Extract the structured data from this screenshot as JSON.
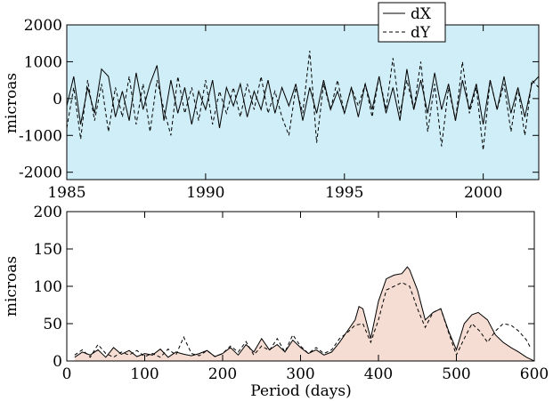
{
  "chart_data": [
    {
      "type": "line",
      "ylabel": "microas",
      "xlim": [
        1985,
        2002
      ],
      "ylim": [
        -2200,
        2000
      ],
      "xticks": [
        1985,
        1990,
        1995,
        2000
      ],
      "yticks": [
        -2000,
        -1000,
        0,
        1000,
        2000
      ],
      "xtick_labels": [
        "1985",
        "1990",
        "1995",
        "2000"
      ],
      "ytick_labels": [
        "-2000",
        "-1000",
        "0",
        "1000",
        "2000"
      ],
      "background": "#cfeef7",
      "grid": false,
      "legend": {
        "placement": "top-right",
        "entries": [
          "dX",
          "dY"
        ]
      },
      "series": [
        {
          "name": "dX",
          "style": "solid",
          "x": [
            1985.0,
            1985.25,
            1985.5,
            1985.75,
            1986.0,
            1986.25,
            1986.5,
            1986.75,
            1987.0,
            1987.25,
            1987.5,
            1987.75,
            1988.0,
            1988.25,
            1988.5,
            1988.75,
            1989.0,
            1989.25,
            1989.5,
            1989.75,
            1990.0,
            1990.25,
            1990.5,
            1990.75,
            1991.0,
            1991.25,
            1991.5,
            1991.75,
            1992.0,
            1992.25,
            1992.5,
            1992.75,
            1993.0,
            1993.25,
            1993.5,
            1993.75,
            1994.0,
            1994.25,
            1994.5,
            1994.75,
            1995.0,
            1995.25,
            1995.5,
            1995.75,
            1996.0,
            1996.25,
            1996.5,
            1996.75,
            1997.0,
            1997.25,
            1997.5,
            1997.75,
            1998.0,
            1998.25,
            1998.5,
            1998.75,
            1999.0,
            1999.25,
            1999.5,
            1999.75,
            2000.0,
            2000.25,
            2000.5,
            2000.75,
            2001.0,
            2001.25,
            2001.5,
            2001.75,
            2002.0
          ],
          "values": [
            -200,
            600,
            -700,
            300,
            -400,
            800,
            600,
            -500,
            200,
            -600,
            700,
            -300,
            400,
            900,
            -600,
            500,
            -400,
            300,
            -700,
            200,
            -300,
            500,
            -800,
            300,
            -200,
            400,
            -500,
            200,
            -300,
            500,
            -400,
            300,
            -200,
            400,
            -600,
            300,
            -400,
            500,
            -300,
            200,
            -400,
            300,
            -500,
            400,
            -300,
            600,
            -400,
            300,
            -600,
            800,
            -300,
            500,
            -400,
            700,
            -300,
            400,
            -600,
            500,
            -300,
            400,
            -700,
            500,
            -300,
            600,
            -400,
            300,
            -500,
            400,
            600
          ]
        },
        {
          "name": "dY",
          "style": "dashed",
          "x": [
            1985.0,
            1985.25,
            1985.5,
            1985.75,
            1986.0,
            1986.25,
            1986.5,
            1986.75,
            1987.0,
            1987.25,
            1987.5,
            1987.75,
            1988.0,
            1988.25,
            1988.5,
            1988.75,
            1989.0,
            1989.25,
            1989.5,
            1989.75,
            1990.0,
            1990.25,
            1990.5,
            1990.75,
            1991.0,
            1991.25,
            1991.5,
            1991.75,
            1992.0,
            1992.25,
            1992.5,
            1992.75,
            1993.0,
            1993.25,
            1993.5,
            1993.75,
            1994.0,
            1994.25,
            1994.5,
            1994.75,
            1995.0,
            1995.25,
            1995.5,
            1995.75,
            1996.0,
            1996.25,
            1996.5,
            1996.75,
            1997.0,
            1997.25,
            1997.5,
            1997.75,
            1998.0,
            1998.25,
            1998.5,
            1998.75,
            1999.0,
            1999.25,
            1999.5,
            1999.75,
            2000.0,
            2000.25,
            2000.5,
            2000.75,
            2001.0,
            2001.25,
            2001.5,
            2001.75,
            2002.0
          ],
          "values": [
            -800,
            300,
            -1100,
            500,
            -600,
            400,
            -900,
            300,
            -500,
            600,
            -700,
            400,
            -900,
            500,
            -300,
            -1000,
            600,
            -400,
            300,
            -600,
            500,
            -700,
            200,
            -400,
            300,
            -500,
            400,
            -300,
            600,
            -400,
            200,
            -500,
            -1000,
            300,
            -400,
            1300,
            -1200,
            400,
            -300,
            500,
            -400,
            300,
            -200,
            400,
            -500,
            600,
            -300,
            1100,
            -400,
            500,
            -300,
            1000,
            -900,
            400,
            -1300,
            300,
            -600,
            1000,
            -400,
            300,
            -1400,
            500,
            -300,
            400,
            -900,
            300,
            -1000,
            500,
            300
          ]
        }
      ]
    },
    {
      "type": "area",
      "xlabel": "Period (days)",
      "ylabel": "microas",
      "xlim": [
        0,
        600
      ],
      "ylim": [
        0,
        200
      ],
      "xticks": [
        0,
        100,
        200,
        300,
        400,
        500,
        600
      ],
      "yticks": [
        0,
        50,
        100,
        150,
        200
      ],
      "xtick_labels": [
        "0",
        "100",
        "200",
        "300",
        "400",
        "500",
        "600"
      ],
      "ytick_labels": [
        "0",
        "50",
        "100",
        "150",
        "200"
      ],
      "fill_color": "#f5ddd3",
      "grid": false,
      "series": [
        {
          "name": "dX",
          "style": "solid",
          "filled": true,
          "x": [
            10,
            20,
            30,
            40,
            50,
            60,
            70,
            80,
            90,
            100,
            110,
            120,
            130,
            140,
            150,
            160,
            170,
            180,
            190,
            200,
            210,
            220,
            230,
            240,
            250,
            260,
            270,
            280,
            290,
            300,
            310,
            320,
            330,
            340,
            350,
            360,
            370,
            375,
            380,
            390,
            400,
            410,
            420,
            430,
            437,
            440,
            450,
            460,
            470,
            480,
            490,
            500,
            510,
            520,
            528,
            540,
            550,
            560,
            570,
            580,
            590,
            600
          ],
          "values": [
            5,
            12,
            8,
            15,
            5,
            18,
            9,
            14,
            6,
            10,
            8,
            16,
            5,
            12,
            9,
            7,
            10,
            14,
            6,
            10,
            18,
            8,
            22,
            12,
            30,
            15,
            22,
            12,
            28,
            18,
            10,
            15,
            8,
            12,
            25,
            40,
            55,
            73,
            70,
            30,
            80,
            110,
            115,
            117,
            126,
            122,
            95,
            55,
            65,
            70,
            40,
            15,
            50,
            62,
            65,
            55,
            35,
            25,
            18,
            12,
            5,
            0
          ]
        },
        {
          "name": "dY",
          "style": "dashed",
          "filled": false,
          "x": [
            10,
            20,
            30,
            40,
            50,
            60,
            70,
            80,
            90,
            100,
            110,
            120,
            130,
            140,
            150,
            160,
            170,
            180,
            190,
            200,
            210,
            220,
            230,
            240,
            250,
            260,
            270,
            280,
            290,
            300,
            310,
            320,
            330,
            340,
            350,
            360,
            370,
            380,
            390,
            400,
            410,
            420,
            430,
            440,
            450,
            460,
            470,
            480,
            490,
            500,
            510,
            520,
            530,
            540,
            550,
            560,
            570,
            580,
            590,
            595
          ],
          "values": [
            8,
            15,
            5,
            22,
            10,
            5,
            12,
            8,
            14,
            6,
            10,
            5,
            16,
            8,
            32,
            10,
            7,
            14,
            6,
            10,
            20,
            12,
            26,
            8,
            20,
            14,
            30,
            12,
            35,
            20,
            10,
            18,
            10,
            15,
            30,
            38,
            48,
            50,
            25,
            55,
            95,
            100,
            105,
            100,
            70,
            45,
            65,
            70,
            38,
            8,
            30,
            50,
            40,
            25,
            40,
            50,
            48,
            40,
            28,
            18
          ]
        }
      ]
    }
  ]
}
